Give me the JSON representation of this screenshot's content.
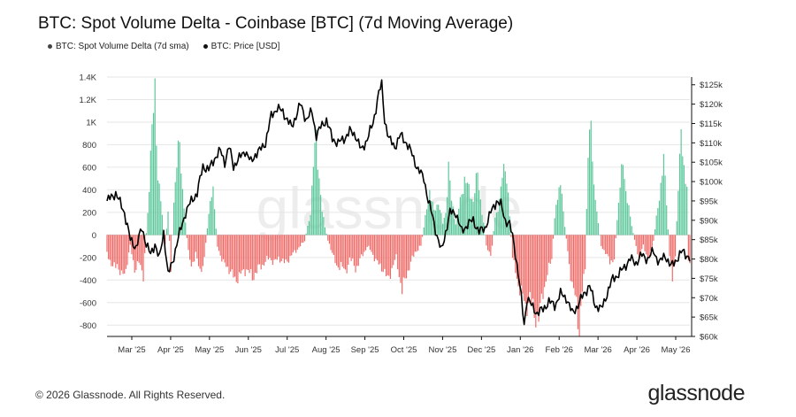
{
  "title": "BTC: Spot Volume Delta - Coinbase [BTC] (7d Moving Average)",
  "legend": [
    {
      "label": "BTC: Spot Volume Delta (7d sma)",
      "color": "#444444"
    },
    {
      "label": "BTC: Price [USD]",
      "color": "#111111"
    }
  ],
  "footer": {
    "copyright": "© 2026 Glassnode. All Rights Reserved.",
    "logo": "glassnode"
  },
  "watermark": "glassnode",
  "colors": {
    "positive": "#5cc79a",
    "negative": "#ef6a67",
    "price": "#000000",
    "grid": "#e6e6e6"
  },
  "chart_data": {
    "type": "bar+line",
    "x_ticks": [
      "Mar '25",
      "Apr '25",
      "May '25",
      "Jun '25",
      "Jul '25",
      "Aug '25",
      "Sep '25",
      "Oct '25",
      "Nov '25",
      "Dec '25",
      "Jan '26",
      "Feb '26",
      "Mar '26",
      "Apr '26",
      "May '26"
    ],
    "y_left": {
      "ticks": [
        "1.4K",
        "1.2K",
        "1K",
        "800",
        "600",
        "400",
        "200",
        "0",
        "-200",
        "-400",
        "-600",
        "-800"
      ],
      "range": [
        -900,
        1400
      ]
    },
    "y_right": {
      "ticks": [
        "$125k",
        "$120k",
        "$115k",
        "$110k",
        "$105k",
        "$100k",
        "$95k",
        "$90k",
        "$85k",
        "$80k",
        "$75k",
        "$70k",
        "$65k",
        "$60k"
      ],
      "range": [
        60000,
        127000
      ]
    },
    "series": [
      {
        "name": "BTC: Spot Volume Delta (7d sma)",
        "axis": "left",
        "kind": "bar",
        "keyframes": [
          [
            0,
            -150
          ],
          [
            4,
            -300
          ],
          [
            7,
            -250
          ],
          [
            10,
            -380
          ],
          [
            13,
            -300
          ],
          [
            16,
            -100
          ],
          [
            19,
            -300
          ],
          [
            22,
            -250
          ],
          [
            25,
            -350
          ],
          [
            28,
            200
          ],
          [
            31,
            900
          ],
          [
            33,
            1350
          ],
          [
            35,
            500
          ],
          [
            37,
            300
          ],
          [
            40,
            -100
          ],
          [
            42,
            200
          ],
          [
            44,
            -300
          ],
          [
            46,
            300
          ],
          [
            48,
            600
          ],
          [
            50,
            850
          ],
          [
            52,
            400
          ],
          [
            54,
            100
          ],
          [
            56,
            -150
          ],
          [
            58,
            -300
          ],
          [
            61,
            -150
          ],
          [
            64,
            -350
          ],
          [
            67,
            -200
          ],
          [
            70,
            200
          ],
          [
            73,
            400
          ],
          [
            76,
            -100
          ],
          [
            80,
            -250
          ],
          [
            84,
            -300
          ],
          [
            88,
            -400
          ],
          [
            92,
            -350
          ],
          [
            96,
            -300
          ],
          [
            100,
            -380
          ],
          [
            104,
            -300
          ],
          [
            108,
            -250
          ],
          [
            112,
            -200
          ],
          [
            115,
            -250
          ],
          [
            118,
            -200
          ],
          [
            122,
            -250
          ],
          [
            126,
            -200
          ],
          [
            129,
            -150
          ],
          [
            133,
            -100
          ],
          [
            136,
            -50
          ],
          [
            140,
            200
          ],
          [
            142,
            600
          ],
          [
            144,
            900
          ],
          [
            146,
            500
          ],
          [
            148,
            200
          ],
          [
            152,
            -50
          ],
          [
            155,
            -150
          ],
          [
            158,
            -300
          ],
          [
            161,
            -250
          ],
          [
            164,
            -350
          ],
          [
            167,
            -200
          ],
          [
            171,
            -300
          ],
          [
            175,
            -200
          ],
          [
            179,
            -100
          ],
          [
            182,
            -150
          ],
          [
            186,
            -250
          ],
          [
            190,
            -300
          ],
          [
            193,
            -400
          ],
          [
            196,
            -300
          ],
          [
            199,
            -200
          ],
          [
            203,
            -500
          ],
          [
            206,
            -350
          ],
          [
            209,
            -250
          ],
          [
            212,
            -150
          ],
          [
            216,
            -100
          ],
          [
            219,
            150
          ],
          [
            222,
            400
          ],
          [
            225,
            200
          ],
          [
            228,
            300
          ],
          [
            231,
            100
          ],
          [
            233,
            200
          ],
          [
            235,
            600
          ],
          [
            237,
            300
          ],
          [
            240,
            100
          ],
          [
            243,
            300
          ],
          [
            246,
            500
          ],
          [
            249,
            400
          ],
          [
            252,
            300
          ],
          [
            255,
            550
          ],
          [
            258,
            200
          ],
          [
            261,
            -100
          ],
          [
            264,
            -200
          ],
          [
            267,
            150
          ],
          [
            270,
            300
          ],
          [
            272,
            500
          ],
          [
            274,
            650
          ],
          [
            276,
            350
          ],
          [
            279,
            -200
          ],
          [
            282,
            -400
          ],
          [
            285,
            -500
          ],
          [
            288,
            -650
          ],
          [
            291,
            -550
          ],
          [
            294,
            -700
          ],
          [
            297,
            -750
          ],
          [
            300,
            -500
          ],
          [
            303,
            -350
          ],
          [
            306,
            -200
          ],
          [
            309,
            300
          ],
          [
            312,
            450
          ],
          [
            314,
            200
          ],
          [
            317,
            -150
          ],
          [
            320,
            -450
          ],
          [
            323,
            -600
          ],
          [
            325,
            -850
          ],
          [
            327,
            -500
          ],
          [
            329,
            -300
          ],
          [
            331,
            700
          ],
          [
            333,
            1100
          ],
          [
            335,
            400
          ],
          [
            337,
            200
          ],
          [
            340,
            -100
          ],
          [
            343,
            -150
          ],
          [
            346,
            -250
          ],
          [
            349,
            -200
          ],
          [
            352,
            300
          ],
          [
            355,
            650
          ],
          [
            357,
            400
          ],
          [
            360,
            150
          ],
          [
            363,
            -50
          ],
          [
            366,
            -200
          ],
          [
            369,
            -100
          ],
          [
            372,
            -200
          ],
          [
            375,
            -150
          ],
          [
            378,
            150
          ],
          [
            381,
            450
          ],
          [
            383,
            650
          ],
          [
            385,
            300
          ],
          [
            387,
            -200
          ],
          [
            389,
            -350
          ],
          [
            391,
            -200
          ],
          [
            393,
            450
          ],
          [
            395,
            850
          ],
          [
            397,
            600
          ],
          [
            399,
            450
          ],
          [
            400,
            -200
          ],
          [
            401,
            -250
          ]
        ]
      },
      {
        "name": "BTC: Price [USD]",
        "axis": "right",
        "kind": "line",
        "keyframes": [
          [
            0,
            95000
          ],
          [
            6,
            97000
          ],
          [
            12,
            92000
          ],
          [
            16,
            85000
          ],
          [
            20,
            83000
          ],
          [
            24,
            88000
          ],
          [
            27,
            84000
          ],
          [
            30,
            81000
          ],
          [
            33,
            84000
          ],
          [
            36,
            80000
          ],
          [
            39,
            87000
          ],
          [
            42,
            76000
          ],
          [
            45,
            79000
          ],
          [
            48,
            84000
          ],
          [
            51,
            88000
          ],
          [
            54,
            92000
          ],
          [
            58,
            95000
          ],
          [
            62,
            97000
          ],
          [
            66,
            104000
          ],
          [
            70,
            103000
          ],
          [
            74,
            106000
          ],
          [
            78,
            108000
          ],
          [
            81,
            105000
          ],
          [
            84,
            109000
          ],
          [
            87,
            104000
          ],
          [
            91,
            106000
          ],
          [
            95,
            108000
          ],
          [
            99,
            105000
          ],
          [
            102,
            107000
          ],
          [
            105,
            108000
          ],
          [
            109,
            110000
          ],
          [
            113,
            117000
          ],
          [
            117,
            119000
          ],
          [
            121,
            118000
          ],
          [
            124,
            116000
          ],
          [
            127,
            114000
          ],
          [
            130,
            117000
          ],
          [
            133,
            120000
          ],
          [
            137,
            116000
          ],
          [
            141,
            118000
          ],
          [
            144,
            112000
          ],
          [
            147,
            114000
          ],
          [
            151,
            116000
          ],
          [
            155,
            111000
          ],
          [
            159,
            110000
          ],
          [
            163,
            111000
          ],
          [
            167,
            113000
          ],
          [
            171,
            112000
          ],
          [
            175,
            108000
          ],
          [
            179,
            111000
          ],
          [
            183,
            115000
          ],
          [
            187,
            123000
          ],
          [
            189,
            125000
          ],
          [
            191,
            116000
          ],
          [
            194,
            111000
          ],
          [
            198,
            109000
          ],
          [
            202,
            112000
          ],
          [
            206,
            110000
          ],
          [
            210,
            107000
          ],
          [
            214,
            103000
          ],
          [
            218,
            101000
          ],
          [
            221,
            95000
          ],
          [
            224,
            91000
          ],
          [
            227,
            86000
          ],
          [
            230,
            82000
          ],
          [
            233,
            87000
          ],
          [
            236,
            92000
          ],
          [
            240,
            92000
          ],
          [
            244,
            87000
          ],
          [
            248,
            89000
          ],
          [
            252,
            90000
          ],
          [
            256,
            87000
          ],
          [
            260,
            88000
          ],
          [
            264,
            92000
          ],
          [
            268,
            95000
          ],
          [
            271,
            94000
          ],
          [
            274,
            90000
          ],
          [
            277,
            89000
          ],
          [
            280,
            84000
          ],
          [
            283,
            76000
          ],
          [
            285,
            70000
          ],
          [
            287,
            63000
          ],
          [
            289,
            70000
          ],
          [
            292,
            68000
          ],
          [
            296,
            66000
          ],
          [
            300,
            67000
          ],
          [
            304,
            69000
          ],
          [
            308,
            68000
          ],
          [
            312,
            71000
          ],
          [
            316,
            70000
          ],
          [
            320,
            66000
          ],
          [
            324,
            68000
          ],
          [
            328,
            71000
          ],
          [
            332,
            73000
          ],
          [
            336,
            68000
          ],
          [
            340,
            67000
          ],
          [
            344,
            71000
          ],
          [
            348,
            75000
          ],
          [
            352,
            76000
          ],
          [
            356,
            78000
          ],
          [
            360,
            80000
          ],
          [
            364,
            79000
          ],
          [
            368,
            81000
          ],
          [
            372,
            80000
          ],
          [
            376,
            82000
          ],
          [
            380,
            79000
          ],
          [
            384,
            81000
          ],
          [
            388,
            78000
          ],
          [
            392,
            80000
          ],
          [
            396,
            82000
          ],
          [
            399,
            81000
          ],
          [
            401,
            80000
          ]
        ]
      }
    ]
  }
}
